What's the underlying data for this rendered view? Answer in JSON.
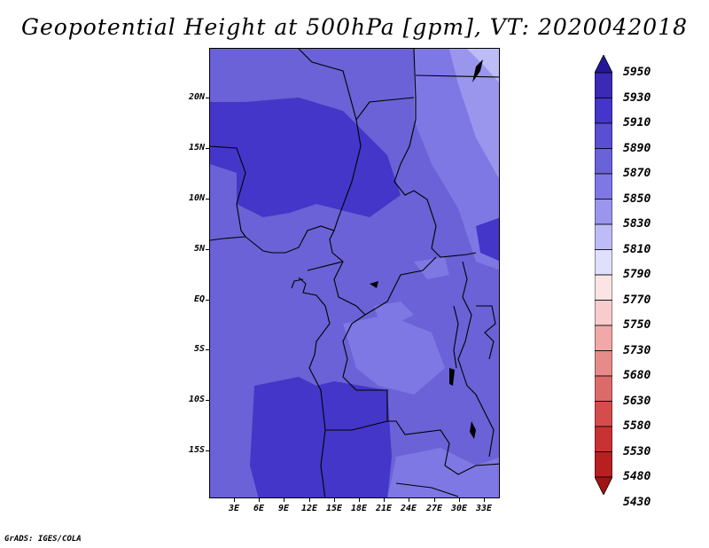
{
  "title": "Geopotential Height at 500hPa [gpm], VT: 2020042018",
  "footer": "GrADS: IGES/COLA",
  "map": {
    "lat_labels": [
      "20N",
      "15N",
      "10N",
      "5N",
      "EQ",
      "5S",
      "10S",
      "15S"
    ],
    "lon_labels": [
      "3E",
      "6E",
      "9E",
      "12E",
      "15E",
      "18E",
      "21E",
      "24E",
      "27E",
      "30E",
      "33E"
    ]
  },
  "colorbar": {
    "levels": [
      "5950",
      "5930",
      "5910",
      "5890",
      "5870",
      "5850",
      "5830",
      "5810",
      "5790",
      "5770",
      "5750",
      "5730",
      "5680",
      "5630",
      "5580",
      "5530",
      "5480",
      "5430"
    ],
    "colors": [
      "#24169a",
      "#3a2ab4",
      "#4436c8",
      "#5a4ed2",
      "#6a62d8",
      "#7e78e4",
      "#9a96ee",
      "#bebcf6",
      "#e0e0fc",
      "#fbe4e4",
      "#f8cccc",
      "#f0a8a8",
      "#e68a8a",
      "#dc6a6a",
      "#d44c4c",
      "#c83232",
      "#b82020",
      "#a01414"
    ]
  }
}
